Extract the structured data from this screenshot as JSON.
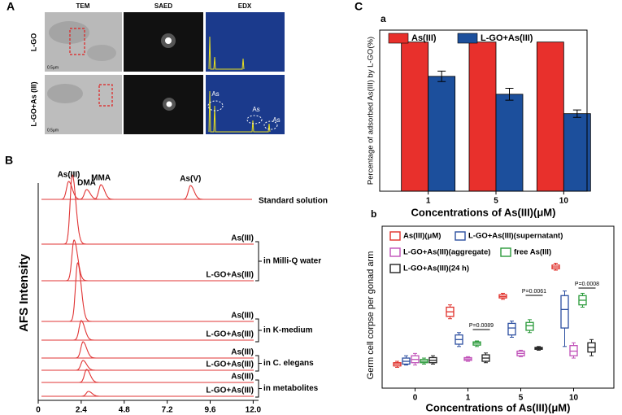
{
  "panel_a": {
    "label": "A",
    "columns": [
      "TEM",
      "SAED",
      "EDX"
    ],
    "rows": [
      "L-GO",
      "L-GO+As (III)"
    ],
    "scale_bars": [
      "0.5μm",
      "0.5μm"
    ],
    "edx_annotations": [
      "As",
      "As",
      "As"
    ]
  },
  "chart_data": [
    {
      "type": "chromatogram",
      "panel_label": "B",
      "ylabel": "AFS Intensity",
      "color": "#e03434",
      "xlim": [
        0,
        12.3
      ],
      "xticks": [
        0,
        2.4,
        4.8,
        7.2,
        9.6,
        {
          "value": 12,
          "label": "12.0"
        }
      ],
      "peak_labels": [
        "As(III)",
        "DMA",
        "MMA",
        "As(V)"
      ],
      "traces": [
        {
          "name": "Standard solution",
          "peaks_x": [
            1.7,
            2.7,
            3.5,
            8.5
          ],
          "peaks_height": [
            22,
            12,
            18,
            17
          ]
        },
        {
          "name": "As(III)",
          "peaks_x": [
            1.9
          ],
          "peaks_height": [
            85
          ]
        },
        {
          "name": "L-GO+As(III)",
          "peaks_x": [
            2.0
          ],
          "peaks_height": [
            50
          ]
        },
        {
          "name": "As(III)",
          "peaks_x": [
            2.2
          ],
          "peaks_height": [
            72
          ]
        },
        {
          "name": "L-GO+As(III)",
          "peaks_x": [
            2.4
          ],
          "peaks_height": [
            24
          ]
        },
        {
          "name": "As(III)",
          "peaks_x": [
            2.5
          ],
          "peaks_height": [
            20
          ]
        },
        {
          "name": "L-GO+As(III)",
          "peaks_x": [
            2.5
          ],
          "peaks_height": [
            12
          ]
        },
        {
          "name": "As(III)",
          "peaks_x": [
            2.7
          ],
          "peaks_height": [
            16
          ]
        },
        {
          "name": "L-GO+As(III)",
          "peaks_x": [
            2.8
          ],
          "peaks_height": [
            6
          ]
        }
      ],
      "group_labels": [
        "in Milli-Q water",
        "in K-medium",
        "in C. elegans",
        "in metabolites"
      ]
    },
    {
      "type": "bar",
      "panel_label": "C",
      "subpanel": "a",
      "ylabel": "Percentage of adsorbed As(III) by L-GO(%)",
      "xlabel": "Concentrations of As(III)(μM)",
      "categories": [
        "1",
        "5",
        "10"
      ],
      "ylim": [
        0,
        108
      ],
      "series": [
        {
          "name": "As(III)",
          "color": "#e8302c",
          "values": [
            100,
            100,
            100
          ]
        },
        {
          "name": "L-GO+As(III)",
          "color": "#1c4f9c",
          "values": [
            77,
            65,
            52
          ],
          "errors": [
            3.5,
            4,
            2.5
          ]
        }
      ]
    },
    {
      "type": "box",
      "subpanel": "b",
      "ylabel": "Germ cell corpse per gonad arm",
      "xlabel": "Concentrations of As(III)(μM)",
      "categories": [
        "0",
        "1",
        "5",
        "10"
      ],
      "ylim": [
        2.0,
        5.5
      ],
      "series": [
        {
          "name": "As(III)(μM)",
          "color": "#e0302a",
          "min": [
            2.45,
            3.5,
            3.92,
            4.55
          ],
          "q1": [
            2.48,
            3.55,
            3.95,
            4.58
          ],
          "median": [
            2.52,
            3.65,
            3.98,
            4.62
          ],
          "q3": [
            2.55,
            3.75,
            4.02,
            4.66
          ],
          "max": [
            2.58,
            3.8,
            4.05,
            4.7
          ]
        },
        {
          "name": "L-GO+As(III)(supernatant)",
          "color": "#2c4fa0",
          "min": [
            2.5,
            2.9,
            3.1,
            2.9
          ],
          "q1": [
            2.52,
            2.95,
            3.15,
            3.3
          ],
          "median": [
            2.58,
            3.05,
            3.3,
            3.7
          ],
          "q3": [
            2.65,
            3.15,
            3.4,
            4.0
          ],
          "max": [
            2.7,
            3.2,
            3.45,
            4.1
          ]
        },
        {
          "name": "L-GO+As(III)(aggregate)",
          "color": "#c050b8",
          "min": [
            2.5,
            2.58,
            2.68,
            2.65
          ],
          "q1": [
            2.55,
            2.6,
            2.7,
            2.7
          ],
          "median": [
            2.62,
            2.63,
            2.75,
            2.8
          ],
          "q3": [
            2.7,
            2.66,
            2.8,
            2.92
          ],
          "max": [
            2.75,
            2.68,
            2.82,
            2.98
          ]
        },
        {
          "name": "free As(III)",
          "color": "#2a9a3a",
          "min": [
            2.52,
            2.9,
            3.2,
            3.75
          ],
          "q1": [
            2.55,
            2.93,
            3.25,
            3.8
          ],
          "median": [
            2.58,
            2.97,
            3.35,
            3.9
          ],
          "q3": [
            2.62,
            3.0,
            3.42,
            4.0
          ],
          "max": [
            2.65,
            3.02,
            3.48,
            4.05
          ]
        },
        {
          "name": "L-GO+As(III)(24 h)",
          "color": "#222222",
          "min": [
            2.52,
            2.55,
            2.82,
            2.7
          ],
          "q1": [
            2.55,
            2.58,
            2.84,
            2.78
          ],
          "median": [
            2.6,
            2.65,
            2.86,
            2.88
          ],
          "q3": [
            2.66,
            2.72,
            2.88,
            2.98
          ],
          "max": [
            2.7,
            2.76,
            2.9,
            3.05
          ]
        }
      ],
      "annotations": [
        "P=0.0089",
        "P=0.0061",
        "P=0.0008"
      ]
    }
  ]
}
